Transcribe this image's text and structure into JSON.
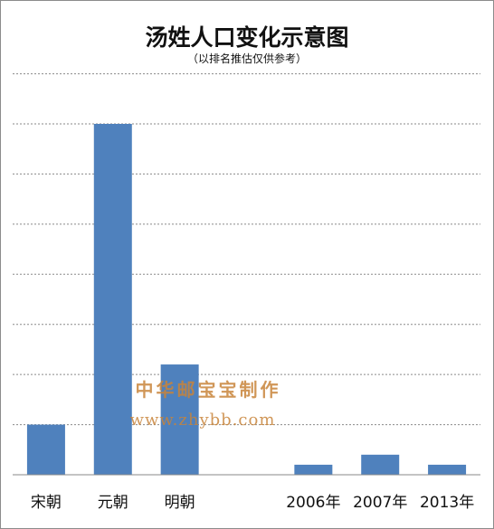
{
  "chart_data": {
    "type": "bar",
    "title": "汤姓人口变化示意图",
    "subtitle": "（以排名推估仅供参考）",
    "categories": [
      "宋朝",
      "元朝",
      "明朝",
      "",
      "2006年",
      "2007年",
      "2013年"
    ],
    "values": [
      10,
      70,
      22,
      null,
      2,
      4,
      2
    ],
    "ylim": [
      0,
      70
    ],
    "grid": true,
    "legend": "none",
    "bar_color": "#4F81BD"
  },
  "watermark": {
    "line1": "中华邮宝宝制作",
    "line2": "www.zhybb.com",
    "color": "#C8843A"
  }
}
